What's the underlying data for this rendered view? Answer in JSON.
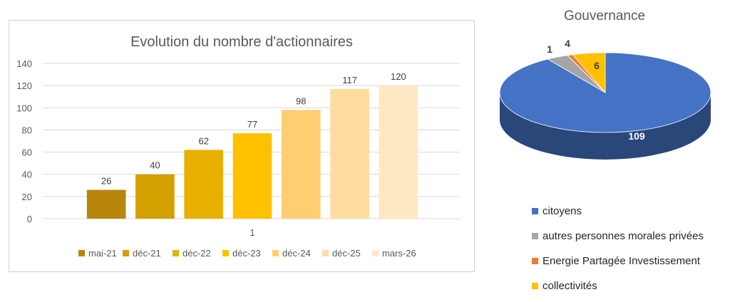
{
  "chart_data": [
    {
      "type": "bar",
      "title": "Evolution du nombre d'actionnaires",
      "xlabel": "",
      "ylabel": "",
      "categories": [
        "1"
      ],
      "ylim": [
        0,
        140
      ],
      "yticks": [
        0,
        20,
        40,
        60,
        80,
        100,
        120,
        140
      ],
      "grid": true,
      "legend_position": "bottom",
      "series": [
        {
          "name": "mai-21",
          "values": [
            26
          ],
          "color": "#B8860B"
        },
        {
          "name": "déc-21",
          "values": [
            40
          ],
          "color": "#D4A000"
        },
        {
          "name": "déc-22",
          "values": [
            62
          ],
          "color": "#E8B000"
        },
        {
          "name": "déc-23",
          "values": [
            77
          ],
          "color": "#FFC000"
        },
        {
          "name": "déc-24",
          "values": [
            98
          ],
          "color": "#FFCE70"
        },
        {
          "name": "déc-25",
          "values": [
            117
          ],
          "color": "#FFDCA0"
        },
        {
          "name": "mars-26",
          "values": [
            120
          ],
          "color": "#FFE8C4"
        }
      ]
    },
    {
      "type": "pie",
      "title": "Gouvernance",
      "legend_position": "bottom",
      "style": "3d",
      "slices": [
        {
          "label": "citoyens",
          "value": 109,
          "color": "#4472C4"
        },
        {
          "label": "autres personnes morales privées",
          "value": 4,
          "color": "#A5A5A5"
        },
        {
          "label": "Energie Partagée Investissement",
          "value": 1,
          "color": "#ED7D31"
        },
        {
          "label": "collectivités",
          "value": 6,
          "color": "#FFC000"
        }
      ]
    }
  ]
}
